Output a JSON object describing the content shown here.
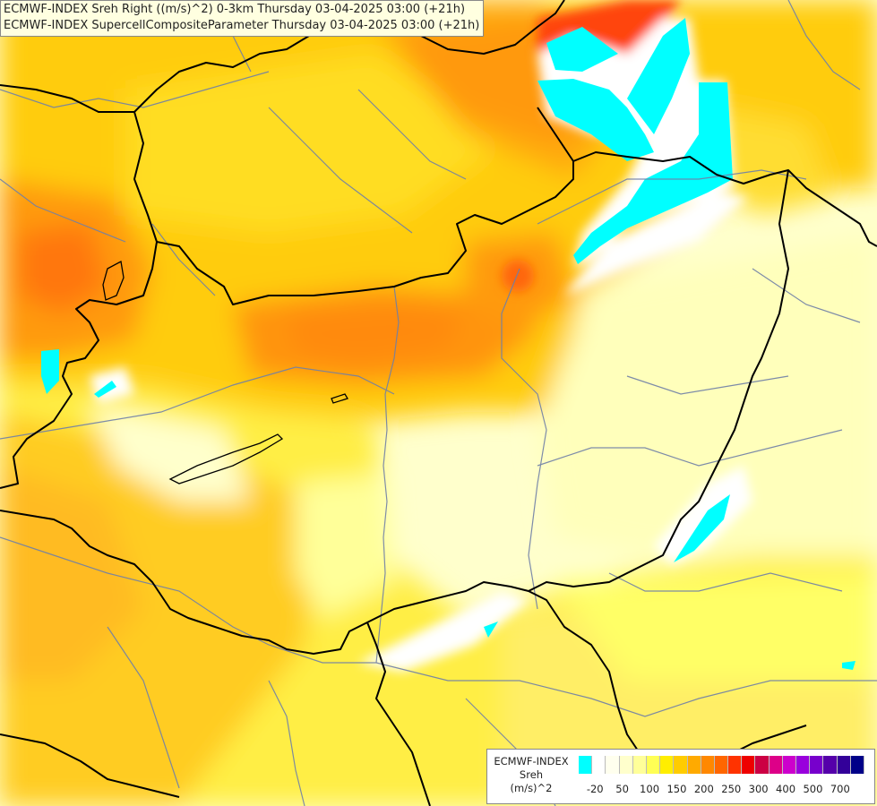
{
  "title": {
    "line1": "ECMWF-INDEX Sreh Right ((m/s)^2) 0-3km Thursday 03-04-2025 03:00 (+21h)",
    "line2": "ECMWF-INDEX SupercellCompositeParameter Thursday 03-04-2025 03:00 (+21h)"
  },
  "legend": {
    "label_line1": "ECMWF-INDEX",
    "label_line2": "Sreh",
    "label_line3": "(m/s)^2",
    "colors": [
      "#00ffff",
      "#ffffff",
      "#ffffee",
      "#ffffcc",
      "#ffff99",
      "#ffff55",
      "#ffee00",
      "#ffcc00",
      "#ffaa00",
      "#ff8800",
      "#ff6600",
      "#ff3300",
      "#ee0000",
      "#cc0044",
      "#dd0088",
      "#cc00cc",
      "#9900dd",
      "#7700cc",
      "#5500aa",
      "#330099",
      "#000088"
    ],
    "ticks": [
      "-20",
      "50",
      "100",
      "150",
      "200",
      "250",
      "300",
      "400",
      "500",
      "700"
    ]
  },
  "map": {
    "background_color": "#ffffcc",
    "border_color": "#000000",
    "river_color": "#6f7fa7"
  }
}
